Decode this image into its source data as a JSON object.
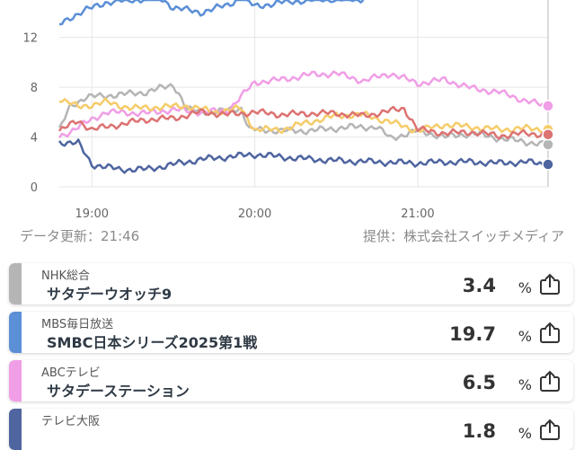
{
  "chart_data": {
    "type": "line",
    "x_ticks": [
      "19:00",
      "20:00",
      "21:00"
    ],
    "y_ticks": [
      "0",
      "4",
      "8",
      "12"
    ],
    "ylim": [
      0,
      15
    ],
    "xlim": [
      "18:48",
      "21:48"
    ],
    "grid": true,
    "series": [
      {
        "name": "NHK総合",
        "color": "#b5b5b5",
        "points": [
          [
            "18:48",
            4.5
          ],
          [
            "18:52",
            6.5
          ],
          [
            "18:58",
            7.2
          ],
          [
            "19:10",
            7.4
          ],
          [
            "19:20",
            7.6
          ],
          [
            "19:25",
            7.9
          ],
          [
            "19:30",
            8.2
          ],
          [
            "19:32",
            7.5
          ],
          [
            "19:35",
            6.2
          ],
          [
            "19:45",
            6.0
          ],
          [
            "19:55",
            6.3
          ],
          [
            "19:58",
            4.6
          ],
          [
            "20:10",
            4.5
          ],
          [
            "20:20",
            4.5
          ],
          [
            "20:35",
            4.8
          ],
          [
            "20:45",
            4.8
          ],
          [
            "20:50",
            3.9
          ],
          [
            "21:00",
            4.5
          ],
          [
            "21:10",
            4.0
          ],
          [
            "21:20",
            4.3
          ],
          [
            "21:30",
            3.9
          ],
          [
            "21:40",
            3.6
          ],
          [
            "21:47",
            3.4
          ]
        ]
      },
      {
        "name": "MBS毎日放送",
        "color": "#5b8fd6",
        "points": [
          [
            "18:48",
            13.0
          ],
          [
            "18:52",
            13.6
          ],
          [
            "18:58",
            14.2
          ],
          [
            "19:05",
            14.8
          ],
          [
            "19:15",
            15.0
          ],
          [
            "19:25",
            15.2
          ],
          [
            "19:30",
            14.4
          ],
          [
            "19:40",
            14.0
          ],
          [
            "19:50",
            14.6
          ],
          [
            "19:55",
            15.2
          ],
          [
            "20:00",
            14.5
          ],
          [
            "20:10",
            14.8
          ],
          [
            "20:20",
            15.0
          ],
          [
            "20:30",
            15.1
          ],
          [
            "20:40",
            15.0
          ]
        ]
      },
      {
        "name": "ABCテレビ",
        "color": "#f09ee6",
        "points": [
          [
            "18:48",
            4.0
          ],
          [
            "18:55",
            4.8
          ],
          [
            "19:05",
            6.0
          ],
          [
            "19:20",
            5.9
          ],
          [
            "19:30",
            6.2
          ],
          [
            "19:40",
            6.0
          ],
          [
            "19:50",
            6.1
          ],
          [
            "20:00",
            8.4
          ],
          [
            "20:10",
            8.6
          ],
          [
            "20:20",
            9.0
          ],
          [
            "20:30",
            9.1
          ],
          [
            "20:40",
            8.5
          ],
          [
            "20:50",
            9.1
          ],
          [
            "21:00",
            8.3
          ],
          [
            "21:10",
            8.6
          ],
          [
            "21:20",
            7.9
          ],
          [
            "21:30",
            7.6
          ],
          [
            "21:40",
            6.9
          ],
          [
            "21:47",
            6.5
          ]
        ]
      },
      {
        "name": "テレビ大阪",
        "color": "#4f65a0",
        "points": [
          [
            "18:48",
            3.6
          ],
          [
            "18:55",
            3.5
          ],
          [
            "19:00",
            1.8
          ],
          [
            "19:10",
            1.4
          ],
          [
            "19:20",
            1.4
          ],
          [
            "19:30",
            1.8
          ],
          [
            "19:40",
            2.2
          ],
          [
            "19:50",
            2.4
          ],
          [
            "20:00",
            2.6
          ],
          [
            "20:15",
            2.3
          ],
          [
            "20:30",
            2.1
          ],
          [
            "20:45",
            2.0
          ],
          [
            "21:00",
            1.9
          ],
          [
            "21:10",
            2.0
          ],
          [
            "21:20",
            2.0
          ],
          [
            "21:30",
            1.9
          ],
          [
            "21:40",
            2.0
          ],
          [
            "21:47",
            1.8
          ]
        ]
      },
      {
        "name": "",
        "color": "#f5cc6a",
        "points": [
          [
            "18:48",
            7.1
          ],
          [
            "18:55",
            6.4
          ],
          [
            "19:05",
            6.8
          ],
          [
            "19:15",
            6.3
          ],
          [
            "19:25",
            6.4
          ],
          [
            "19:35",
            6.5
          ],
          [
            "19:45",
            6.0
          ],
          [
            "19:55",
            6.3
          ],
          [
            "20:00",
            4.6
          ],
          [
            "20:10",
            4.6
          ],
          [
            "20:20",
            5.2
          ],
          [
            "20:30",
            5.7
          ],
          [
            "20:40",
            5.8
          ],
          [
            "20:50",
            5.2
          ],
          [
            "21:00",
            4.5
          ],
          [
            "21:10",
            5.0
          ],
          [
            "21:20",
            4.8
          ],
          [
            "21:30",
            4.6
          ],
          [
            "21:40",
            4.7
          ],
          [
            "21:47",
            4.6
          ]
        ]
      },
      {
        "name": "",
        "color": "#dc7372",
        "points": [
          [
            "18:48",
            4.5
          ],
          [
            "18:55",
            5.3
          ],
          [
            "19:00",
            4.6
          ],
          [
            "19:10",
            5.0
          ],
          [
            "19:20",
            5.4
          ],
          [
            "19:30",
            5.5
          ],
          [
            "19:40",
            6.0
          ],
          [
            "19:50",
            5.8
          ],
          [
            "20:00",
            6.0
          ],
          [
            "20:10",
            5.8
          ],
          [
            "20:20",
            5.9
          ],
          [
            "20:30",
            5.9
          ],
          [
            "20:40",
            5.7
          ],
          [
            "20:50",
            6.1
          ],
          [
            "20:55",
            6.3
          ],
          [
            "21:00",
            4.6
          ],
          [
            "21:10",
            4.3
          ],
          [
            "21:20",
            4.4
          ],
          [
            "21:30",
            4.1
          ],
          [
            "21:40",
            4.3
          ],
          [
            "21:47",
            4.2
          ]
        ]
      }
    ]
  },
  "meta": {
    "updated": "データ更新：21:46",
    "provider": "提供：株式会社スイッチメディア"
  },
  "cards": [
    {
      "station": "NHK総合",
      "program": "サタデーウオッチ9",
      "rating": "3.4",
      "unit": "%",
      "color": "#b5b5b5",
      "icon": "share-icon"
    },
    {
      "station": "MBS毎日放送",
      "program": "SMBC日本シリーズ2025第1戦",
      "rating": "19.7",
      "unit": "%",
      "color": "#5b8fd6",
      "icon": "share-icon"
    },
    {
      "station": "ABCテレビ",
      "program": "サタデーステーション",
      "rating": "6.5",
      "unit": "%",
      "color": "#f09ee6",
      "icon": "share-icon"
    },
    {
      "station": "テレビ大阪",
      "program": "",
      "rating": "1.8",
      "unit": "%",
      "color": "#4f65a0",
      "icon": "share-icon"
    }
  ]
}
